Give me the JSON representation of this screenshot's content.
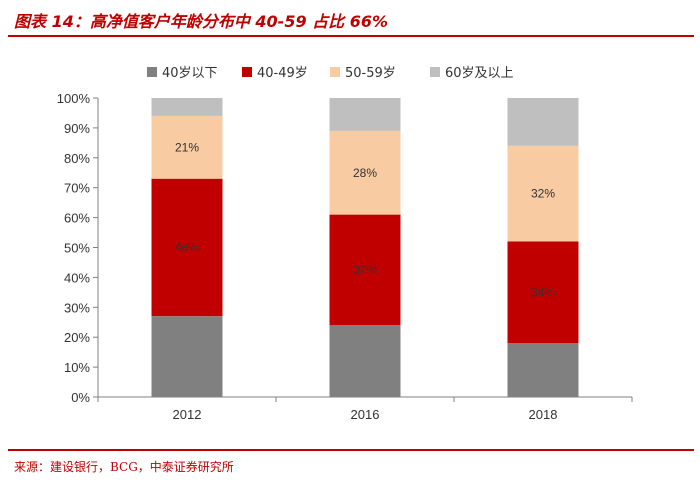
{
  "figure": {
    "title": "图表 14：高净值客户年龄分布中 40-59 占比 66%",
    "source": "来源：建设银行，BCG，中泰证券研究所"
  },
  "chart_data": {
    "type": "bar",
    "stacked": true,
    "categories": [
      "2012",
      "2016",
      "2018"
    ],
    "series": [
      {
        "name": "40岁以下",
        "values": [
          27,
          24,
          18
        ],
        "color": "#808080",
        "labels": [
          null,
          null,
          null
        ]
      },
      {
        "name": "40-49岁",
        "values": [
          46,
          37,
          34
        ],
        "color": "#c00000",
        "labels": [
          "46%",
          "37%",
          "34%"
        ]
      },
      {
        "name": "50-59岁",
        "values": [
          21,
          28,
          32
        ],
        "color": "#f8cba3",
        "labels": [
          "21%",
          "28%",
          "32%"
        ]
      },
      {
        "name": "60岁及以上",
        "values": [
          6,
          11,
          16
        ],
        "color": "#bfbfbf",
        "labels": [
          null,
          null,
          null
        ]
      }
    ],
    "ylim": [
      0,
      100
    ],
    "yticks": [
      "0%",
      "10%",
      "20%",
      "30%",
      "40%",
      "50%",
      "60%",
      "70%",
      "80%",
      "90%",
      "100%"
    ],
    "legend_position": "top",
    "grid": false,
    "xlabel": "",
    "ylabel": ""
  }
}
